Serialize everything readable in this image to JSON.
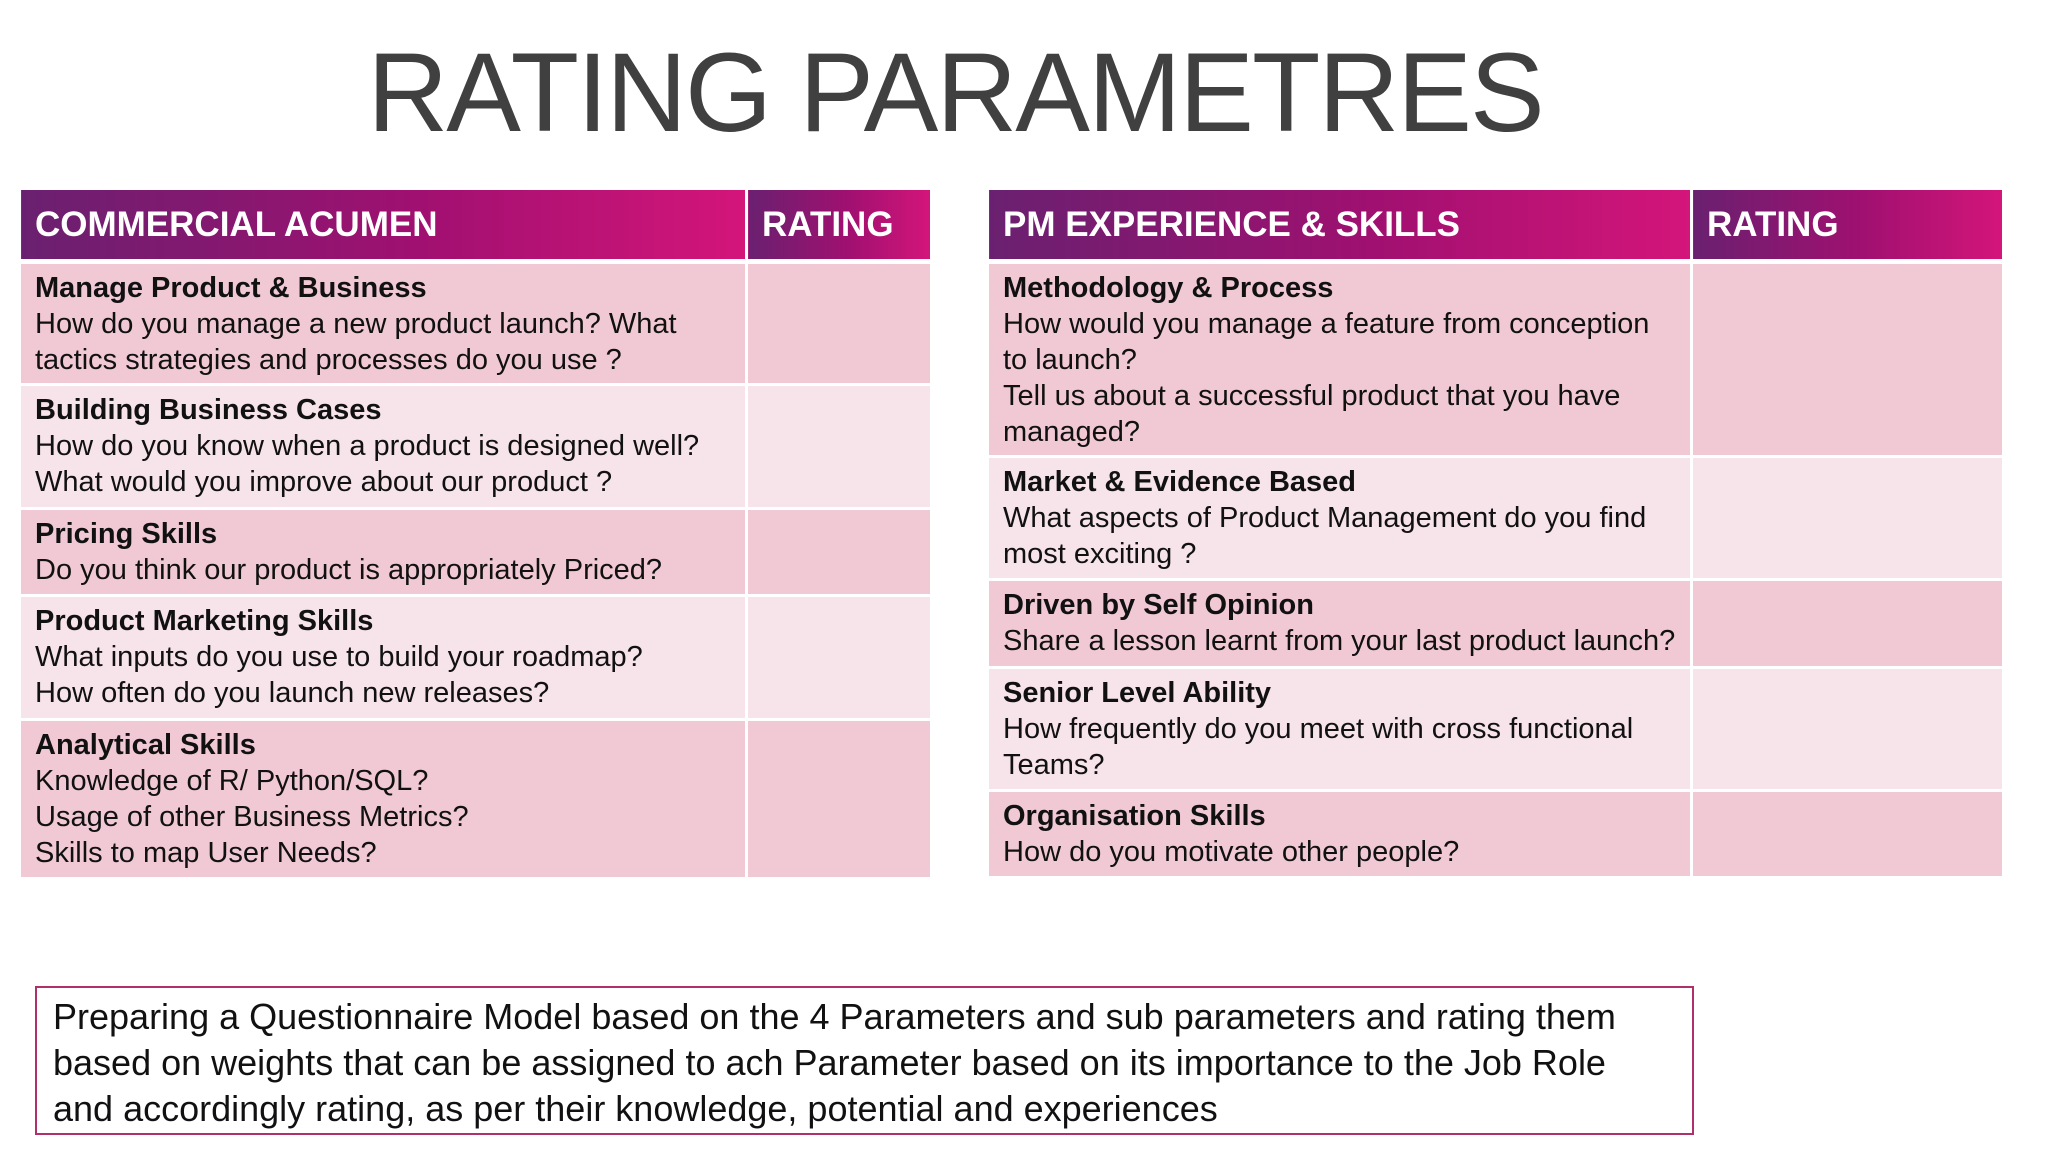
{
  "title": "RATING PARAMETRES",
  "left_table": {
    "header": "COMMERCIAL ACUMEN",
    "rating_header": "RATING",
    "rows": [
      {
        "title": "Manage Product & Business",
        "lines": [
          "How do you manage a new product launch? What tactics strategies and processes do you use ?"
        ]
      },
      {
        "title": "Building Business Cases",
        "lines": [
          "How do you know when a product is designed well?",
          "What would you improve about our product ?"
        ]
      },
      {
        "title": "Pricing Skills",
        "lines": [
          "Do you think our product is appropriately Priced?"
        ]
      },
      {
        "title": "Product Marketing Skills",
        "lines": [
          "What inputs do you use to build your roadmap?",
          "How often do you launch new releases?"
        ]
      },
      {
        "title": "Analytical Skills",
        "lines": [
          "Knowledge of R/ Python/SQL?",
          "Usage of other Business Metrics?",
          "Skills to map User Needs?"
        ]
      }
    ]
  },
  "right_table": {
    "header": "PM EXPERIENCE & SKILLS",
    "rating_header": "RATING",
    "rows": [
      {
        "title": "Methodology & Process",
        "lines": [
          "How would you manage a feature from conception to launch?",
          "Tell us about a successful product that you have managed?"
        ]
      },
      {
        "title": "Market & Evidence Based",
        "lines": [
          "What aspects of Product Management do you find most exciting ?"
        ]
      },
      {
        "title": "Driven by Self Opinion",
        "lines": [
          "Share a lesson learnt from your last product launch?"
        ]
      },
      {
        "title": "Senior Level Ability",
        "lines": [
          "How frequently do you meet with cross functional Teams?"
        ]
      },
      {
        "title": "Organisation Skills",
        "lines": [
          "How do you motivate other people?"
        ]
      }
    ]
  },
  "note": {
    "lines": [
      "Preparing a Questionnaire Model based on the 4 Parameters and sub parameters and rating them",
      "based on weights that can be assigned to ach Parameter based on its importance to the Job Role",
      "and accordingly rating, as per their knowledge, potential and experiences"
    ]
  },
  "colors": {
    "header_gradient_start": "#6a2070",
    "header_gradient_end": "#d4157a",
    "row_dark": "#f1c9d5",
    "row_light": "#f7e3ea",
    "title_text": "#404040",
    "note_border": "#b0306a"
  }
}
